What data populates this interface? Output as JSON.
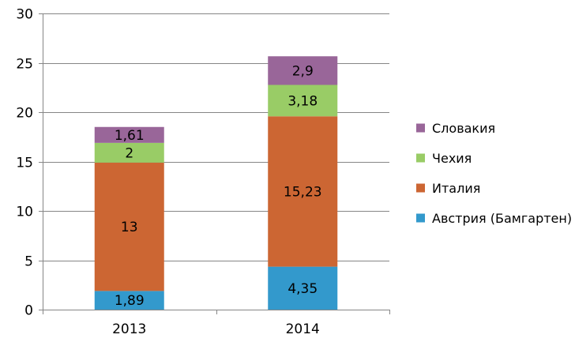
{
  "chart_data": {
    "type": "bar",
    "stacked": true,
    "categories": [
      "2013",
      "2014"
    ],
    "series": [
      {
        "name": "Австрия (Бамгартен)",
        "values": [
          1.89,
          4.35
        ],
        "labels": [
          "1,89",
          "4,35"
        ],
        "color": "#3399cc"
      },
      {
        "name": "Италия",
        "values": [
          13,
          15.23
        ],
        "labels": [
          "13",
          "15,23"
        ],
        "color": "#cc6633"
      },
      {
        "name": "Чехия",
        "values": [
          2,
          3.18
        ],
        "labels": [
          "2",
          "3,18"
        ],
        "color": "#99cc66"
      },
      {
        "name": "Словакия",
        "values": [
          1.61,
          2.9
        ],
        "labels": [
          "1,61",
          "2,9"
        ],
        "color": "#996699"
      }
    ],
    "ylim": [
      0,
      30
    ],
    "yticks": [
      "0",
      "5",
      "10",
      "15",
      "20",
      "25",
      "30"
    ],
    "grid": true,
    "legend_position": "right",
    "title": "",
    "xlabel": "",
    "ylabel": ""
  }
}
